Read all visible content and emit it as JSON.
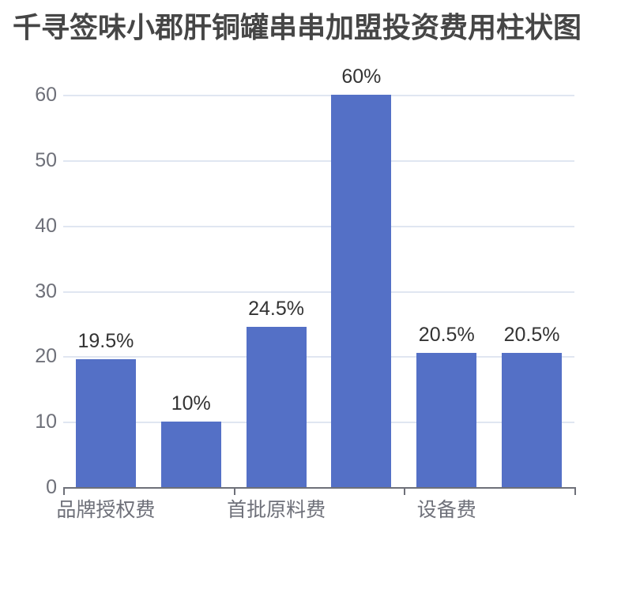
{
  "title": "千寻签味小郡肝铜罐串串加盟投资费用柱状图",
  "chart_data": {
    "type": "bar",
    "title": "千寻签味小郡肝铜罐串串加盟投资费用柱状图",
    "values": [
      19.5,
      10,
      24.5,
      60,
      20.5,
      20.5
    ],
    "bar_labels": [
      "19.5%",
      "10%",
      "24.5%",
      "60%",
      "20.5%",
      "20.5%"
    ],
    "visible_x_tick_labels": [
      {
        "label": "品牌授权费",
        "bar_index": 0
      },
      {
        "label": "首批原料费",
        "bar_index": 2
      },
      {
        "label": "设备费",
        "bar_index": 4
      }
    ],
    "y_ticks": [
      0,
      10,
      20,
      30,
      40,
      50,
      60
    ],
    "ylim": [
      0,
      60
    ],
    "grid": true,
    "legend_position": "none",
    "xlabel": "",
    "ylabel": "",
    "colors": {
      "bar": "#5470C6",
      "gridline": "#E0E6F1",
      "axis_line": "#6E7079",
      "tick_label": "#6E7079",
      "bar_label": "#333333",
      "title": "#464646",
      "background": "#ffffff"
    }
  }
}
